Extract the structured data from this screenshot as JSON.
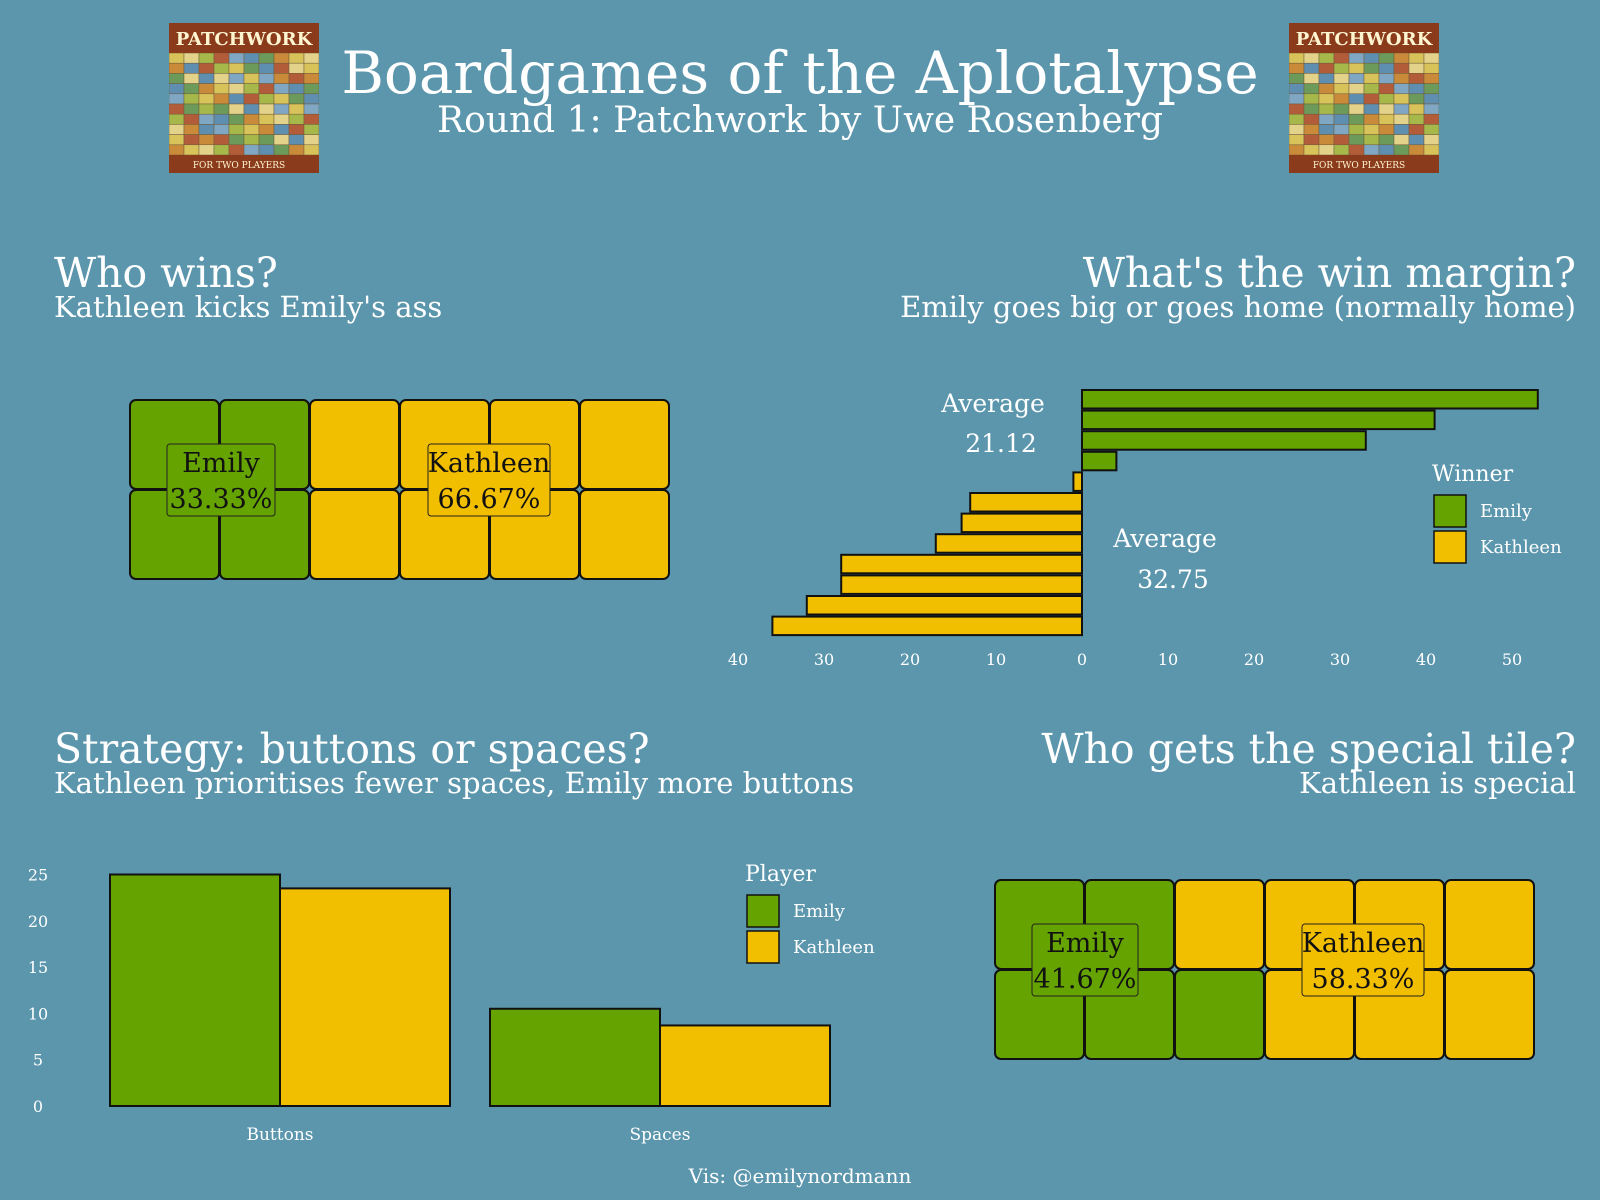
{
  "header": {
    "title": "Boardgames of the Aplotalypse",
    "subtitle": "Round 1: Patchwork by Uwe Rosenberg",
    "box_art": {
      "title": "PATCHWORK",
      "bottom_text": "FOR TWO PLAYERS"
    }
  },
  "colors": {
    "emily": "#65a300",
    "kathleen": "#f2be00",
    "background": "#5b96ad"
  },
  "panels": {
    "wins": {
      "title": "Who wins?",
      "subtitle": "Kathleen kicks Emily's ass"
    },
    "margin": {
      "title": "What's the win margin?",
      "subtitle": "Emily goes big or goes home (normally home)"
    },
    "strategy": {
      "title": "Strategy: buttons or spaces?",
      "subtitle": "Kathleen prioritises fewer spaces, Emily more buttons"
    },
    "special": {
      "title": "Who gets the special tile?",
      "subtitle": "Kathleen is special"
    }
  },
  "footer": "Vis: @emilynordmann",
  "chart_data": [
    {
      "id": "wins",
      "type": "waffle",
      "rows": 2,
      "cols": 6,
      "cells": [
        [
          "Emily",
          "Emily",
          "Kathleen",
          "Kathleen",
          "Kathleen",
          "Kathleen"
        ],
        [
          "Emily",
          "Emily",
          "Kathleen",
          "Kathleen",
          "Kathleen",
          "Kathleen"
        ]
      ],
      "labels": [
        {
          "name": "Emily",
          "value": "33.33%"
        },
        {
          "name": "Kathleen",
          "value": "66.67%"
        }
      ]
    },
    {
      "id": "margin",
      "type": "bar",
      "orientation": "horizontal",
      "values": [
        53,
        41,
        33,
        4,
        -1,
        -13,
        -14,
        -17,
        -28,
        -28,
        -32,
        -36
      ],
      "winners": [
        "Emily",
        "Emily",
        "Emily",
        "Emily",
        "Kathleen",
        "Kathleen",
        "Kathleen",
        "Kathleen",
        "Kathleen",
        "Kathleen",
        "Kathleen",
        "Kathleen"
      ],
      "xticks": [
        -40,
        -30,
        -20,
        -10,
        0,
        10,
        20,
        30,
        40,
        50
      ],
      "xtick_labels": [
        "40",
        "30",
        "20",
        "10",
        "0",
        "10",
        "20",
        "30",
        "40",
        "50"
      ],
      "xlim": [
        -40,
        55
      ],
      "annotations": [
        {
          "label": "Average",
          "value": "21.12"
        },
        {
          "label": "Average",
          "value": "32.75"
        }
      ],
      "legend": {
        "title": "Winner",
        "entries": [
          "Emily",
          "Kathleen"
        ],
        "position": "right"
      }
    },
    {
      "id": "strategy",
      "type": "bar",
      "categories": [
        "Buttons",
        "Spaces"
      ],
      "series": [
        {
          "name": "Emily",
          "values": [
            25,
            10.5
          ]
        },
        {
          "name": "Kathleen",
          "values": [
            23.5,
            8.7
          ]
        }
      ],
      "yticks": [
        0,
        5,
        10,
        15,
        20,
        25
      ],
      "ylim": [
        0,
        25
      ],
      "legend": {
        "title": "Player",
        "entries": [
          "Emily",
          "Kathleen"
        ],
        "position": "top-right"
      }
    },
    {
      "id": "special",
      "type": "waffle",
      "rows": 2,
      "cols": 6,
      "cells": [
        [
          "Emily",
          "Emily",
          "Kathleen",
          "Kathleen",
          "Kathleen",
          "Kathleen"
        ],
        [
          "Emily",
          "Emily",
          "Emily",
          "Kathleen",
          "Kathleen",
          "Kathleen"
        ]
      ],
      "labels": [
        {
          "name": "Emily",
          "value": "41.67%"
        },
        {
          "name": "Kathleen",
          "value": "58.33%"
        }
      ]
    }
  ]
}
